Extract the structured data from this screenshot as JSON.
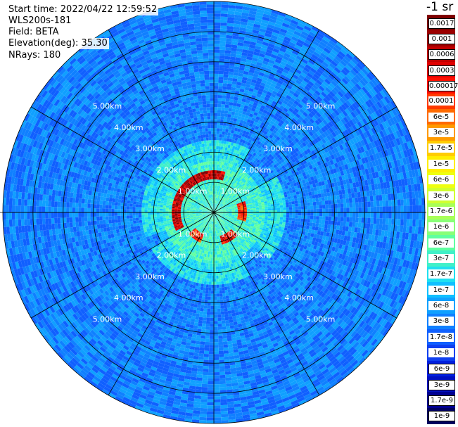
{
  "info": {
    "start_time": "Start time: 2022/04/22 12:59:52",
    "instrument": "WLS200s-181",
    "field": "Field: BETA",
    "elevation": "Elevation(deg): 35.30",
    "nrays": "NRays: 180"
  },
  "chart_data": {
    "type": "heatmap",
    "subtype": "polar-ppi",
    "max_range_km": 7.0,
    "range_rings_km": [
      1.0,
      2.0,
      3.0,
      4.0,
      5.0,
      6.0
    ],
    "range_labels": [
      "1.00km",
      "2.00km",
      "3.00km",
      "4.00km",
      "5.00km"
    ],
    "n_rays": 180,
    "radial_lines_deg": [
      0,
      30,
      60,
      90,
      120,
      150,
      180,
      210,
      240,
      270,
      300,
      330
    ],
    "colorbar": {
      "title": "-1 sr",
      "labels": [
        "0.0017",
        "0.001",
        "0.0006",
        "0.0003",
        "0.00017",
        "0.0001",
        "6e-5",
        "3e-5",
        "1.7e-5",
        "1e-5",
        "6e-6",
        "3e-6",
        "1.7e-6",
        "1e-6",
        "6e-7",
        "3e-7",
        "1.7e-7",
        "1e-7",
        "6e-8",
        "3e-8",
        "1.7e-8",
        "1e-8",
        "6e-9",
        "3e-9",
        "1.7e-9",
        "1e-9"
      ],
      "colors": [
        "#800000",
        "#9c0000",
        "#c00000",
        "#e00000",
        "#ff1000",
        "#ff3a00",
        "#ff6a00",
        "#ff9a00",
        "#ffcc00",
        "#ffee00",
        "#eeff10",
        "#d0ff30",
        "#a8ff58",
        "#88ff78",
        "#60ffa0",
        "#40f0c8",
        "#20e0f0",
        "#10c0ff",
        "#10a0ff",
        "#1080ff",
        "#1060ff",
        "#1040f0",
        "#0020e0",
        "#0010c0",
        "#000090",
        "#000060"
      ]
    },
    "features": [
      {
        "kind": "background",
        "description": "noise field",
        "level": "1e-8 to 1e-7"
      },
      {
        "kind": "inner-disc",
        "r_km": [
          0,
          2.4
        ],
        "level": "3e-7 to 1.7e-6"
      },
      {
        "kind": "high-return-arc",
        "r_km": 1.2,
        "az_deg": [
          245,
          10
        ],
        "level": "1e-4 to 1.7e-3"
      },
      {
        "kind": "high-return-arc",
        "r_km": 1.0,
        "az_deg": [
          70,
          105
        ],
        "level": "6e-5 to 3e-4"
      },
      {
        "kind": "high-return-arc",
        "r_km": 1.0,
        "az_deg": [
          135,
          165
        ],
        "level": "1e-4 to 1e-3"
      },
      {
        "kind": "high-return-arc",
        "r_km": 1.0,
        "az_deg": [
          205,
          230
        ],
        "level": "6e-5 to 3e-4"
      }
    ]
  }
}
